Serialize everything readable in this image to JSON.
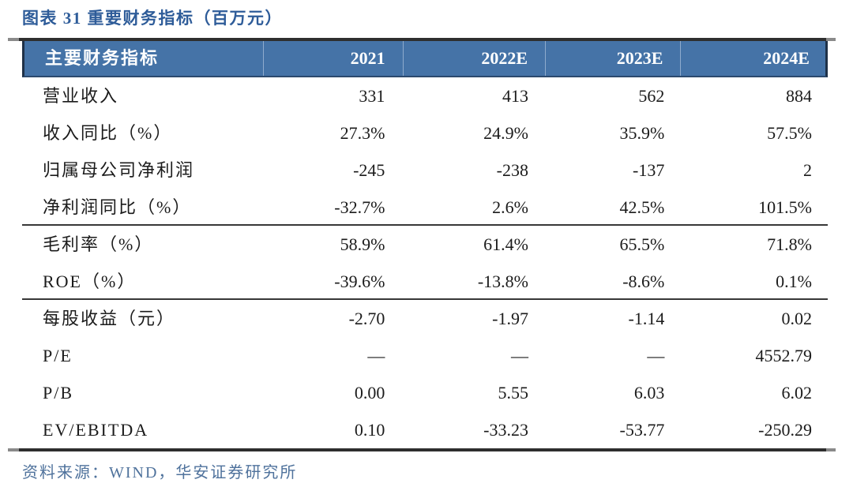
{
  "title": "图表 31 重要财务指标（百万元）",
  "source_note": "资料来源：WIND，华安证券研究所",
  "colors": {
    "title_blue": "#2e5c99",
    "header_background": "#4573a7",
    "header_text": "#ffffff",
    "header_divider": "#8fabcd",
    "rule_dark": "#2e2e2e",
    "source_text_blue": "#4f729c",
    "body_text": "#1b1b1b"
  },
  "table": {
    "header": [
      "主要财务指标",
      "2021",
      "2022E",
      "2023E",
      "2024E"
    ],
    "rows": [
      {
        "label": "营业收入",
        "values": [
          "331",
          "413",
          "562",
          "884"
        ]
      },
      {
        "label": "收入同比（%）",
        "values": [
          "27.3%",
          "24.9%",
          "35.9%",
          "57.5%"
        ]
      },
      {
        "label": "归属母公司净利润",
        "values": [
          "-245",
          "-238",
          "-137",
          "2"
        ]
      },
      {
        "label": "净利润同比（%）",
        "values": [
          "-32.7%",
          "2.6%",
          "42.5%",
          "101.5%"
        ]
      },
      {
        "label": "毛利率（%）",
        "values": [
          "58.9%",
          "61.4%",
          "65.5%",
          "71.8%"
        ]
      },
      {
        "label": "ROE（%）",
        "values": [
          "-39.6%",
          "-13.8%",
          "-8.6%",
          "0.1%"
        ]
      },
      {
        "label": "每股收益（元）",
        "values": [
          "-2.70",
          "-1.97",
          "-1.14",
          "0.02"
        ]
      },
      {
        "label": "P/E",
        "values": [
          "—",
          "—",
          "—",
          "4552.79"
        ]
      },
      {
        "label": "P/B",
        "values": [
          "0.00",
          "5.55",
          "6.03",
          "6.02"
        ]
      },
      {
        "label": "EV/EBITDA",
        "values": [
          "0.10",
          "-33.23",
          "-53.77",
          "-250.29"
        ]
      }
    ]
  }
}
